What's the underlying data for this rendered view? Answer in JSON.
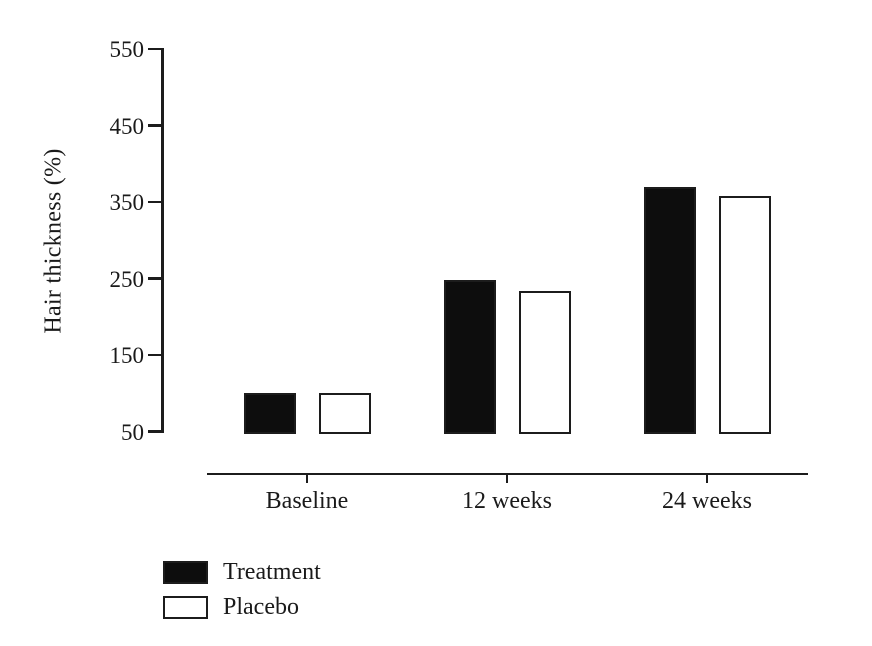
{
  "chart_data": {
    "type": "bar",
    "title": "",
    "ylabel": "Hair thickness (%)",
    "xlabel": "",
    "categories": [
      "Baseline",
      "12 weeks",
      "24 weeks"
    ],
    "series": [
      {
        "name": "Treatment",
        "fill": "#0d0d0d",
        "values": [
          100,
          248,
          370
        ]
      },
      {
        "name": "Placebo",
        "fill": "#ffffff",
        "values": [
          100,
          234,
          358
        ]
      }
    ],
    "y_ticks": [
      50,
      150,
      250,
      350,
      450,
      550
    ],
    "y_range": [
      50,
      550
    ],
    "bar_baseline_value": 50,
    "grid": false,
    "legend_position": "bottom-left",
    "colors": {
      "axis": "#1c1c1c",
      "text": "#1a1a1a",
      "background": "#ffffff"
    }
  }
}
